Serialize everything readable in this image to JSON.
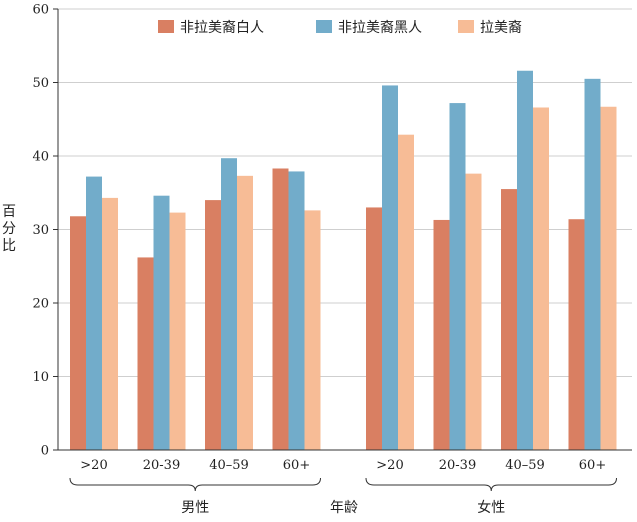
{
  "chart_data": {
    "type": "bar",
    "title": "",
    "ylabel": "百分比",
    "xlabel": "年龄",
    "ylim": [
      0,
      60
    ],
    "yticks": [
      0,
      10,
      20,
      30,
      40,
      50,
      60
    ],
    "grid": true,
    "legend_position": "top-right",
    "groups": [
      {
        "label": "男性",
        "categories": [
          ">20",
          "20-39",
          "40–59",
          "60+"
        ],
        "series": [
          {
            "name": "非拉美裔白人",
            "color": "#d97f62",
            "values": [
              31.8,
              26.2,
              34.0,
              38.3
            ]
          },
          {
            "name": "非拉美裔黑人",
            "color": "#72acca",
            "values": [
              37.2,
              34.6,
              39.7,
              37.9
            ]
          },
          {
            "name": "拉美裔",
            "color": "#f7bc96",
            "values": [
              34.3,
              32.3,
              37.3,
              32.6
            ]
          }
        ]
      },
      {
        "label": "女性",
        "categories": [
          ">20",
          "20-39",
          "40–59",
          "60+"
        ],
        "series": [
          {
            "name": "非拉美裔白人",
            "color": "#d97f62",
            "values": [
              33.0,
              31.3,
              35.5,
              31.4
            ]
          },
          {
            "name": "非拉美裔黑人",
            "color": "#72acca",
            "values": [
              49.6,
              47.2,
              51.6,
              50.5
            ]
          },
          {
            "name": "拉美裔",
            "color": "#f7bc96",
            "values": [
              42.9,
              37.6,
              46.6,
              46.7
            ]
          }
        ]
      }
    ],
    "legend": [
      {
        "name": "非拉美裔白人",
        "color": "#d97f62"
      },
      {
        "name": "非拉美裔黑人",
        "color": "#72acca"
      },
      {
        "name": "拉美裔",
        "color": "#f7bc96"
      }
    ]
  }
}
